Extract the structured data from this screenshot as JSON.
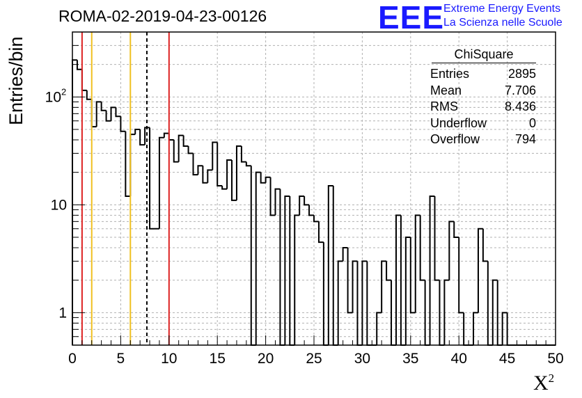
{
  "title": "ROMA-02-2019-04-23-00126",
  "logo": {
    "text": "EEE",
    "line1": "Extreme Energy Events",
    "line2": "La Scienza nelle Scuole",
    "color": "#1a1aff"
  },
  "stats": {
    "title": "ChiSquare",
    "rows": [
      {
        "label": "Entries",
        "value": "2895"
      },
      {
        "label": "Mean",
        "value": "7.706"
      },
      {
        "label": "RMS",
        "value": "8.436"
      },
      {
        "label": "Underflow",
        "value": "0"
      },
      {
        "label": "Overflow",
        "value": "794"
      }
    ]
  },
  "chart_data": {
    "type": "bar",
    "style": "step-histogram",
    "title": "ROMA-02-2019-04-23-00126",
    "xlabel": "X",
    "xlabel_sup": "2",
    "ylabel": "Entries/bin",
    "xlim": [
      0,
      50
    ],
    "ylim": [
      0.5,
      400
    ],
    "ylog": true,
    "grid": true,
    "bin_width": 0.5,
    "x_ticks": [
      0,
      5,
      10,
      15,
      20,
      25,
      30,
      35,
      40,
      45,
      50
    ],
    "y_ticks": [
      {
        "value": 1,
        "label": "1"
      },
      {
        "value": 10,
        "label": "10"
      },
      {
        "value": 100,
        "label": "10",
        "sup": "2"
      }
    ],
    "values": [
      220,
      180,
      115,
      95,
      53,
      90,
      75,
      60,
      80,
      66,
      48,
      12,
      45,
      50,
      36,
      52,
      6,
      6,
      42,
      46,
      40,
      25,
      44,
      35,
      30,
      19,
      23,
      16,
      21,
      38,
      15,
      14,
      26,
      11,
      35,
      25,
      23,
      0,
      20,
      16,
      18,
      8,
      14,
      0,
      12,
      0,
      8,
      12,
      10,
      8,
      7,
      4.5,
      0,
      15,
      0,
      3,
      4,
      1,
      3,
      0,
      3,
      0,
      0,
      1,
      3,
      2,
      0,
      8,
      0,
      5,
      1,
      8,
      2,
      0,
      12,
      2,
      0,
      2,
      7,
      5,
      1,
      0,
      0,
      1,
      6,
      3,
      0,
      2,
      0,
      1,
      0,
      0,
      0,
      0,
      0,
      0,
      0,
      0,
      0,
      0
    ],
    "vlines": [
      {
        "x": 1,
        "color": "#dd2222",
        "style": "solid"
      },
      {
        "x": 2,
        "color": "#f0c020",
        "style": "solid"
      },
      {
        "x": 6,
        "color": "#f0c020",
        "style": "solid"
      },
      {
        "x": 7.706,
        "color": "#000000",
        "style": "dashed"
      },
      {
        "x": 10,
        "color": "#dd2222",
        "style": "solid"
      }
    ]
  }
}
